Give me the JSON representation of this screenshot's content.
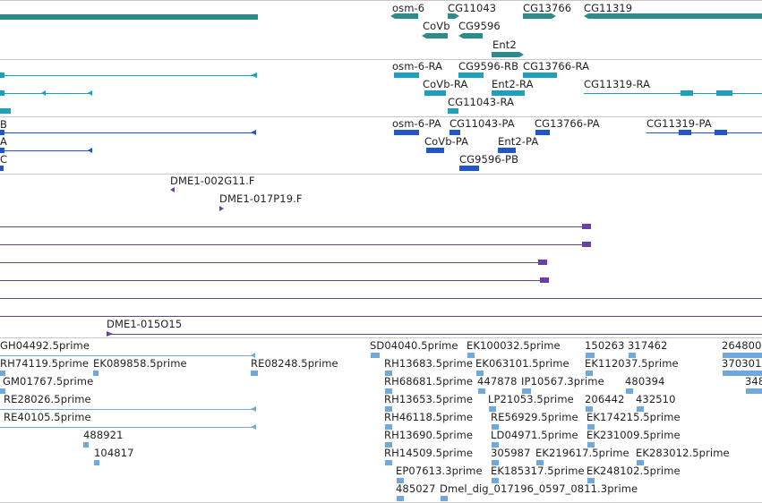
{
  "colors": {
    "gene": "#2e8b8b",
    "mrna": "#1e9fc0",
    "cds": "#2255cc",
    "clone": "#6a3fa6",
    "est": "#6fa8dc",
    "divider": "#c8c8c8"
  },
  "tracks": {
    "genes": {
      "labels": [
        "osm-6",
        "CG11043",
        "CG13766",
        "CG11319",
        "CoVb",
        "CG9596",
        "Ent2"
      ]
    },
    "transcripts": {
      "labels": [
        "osm-6-RA",
        "CG9596-RB",
        "CG13766-RA",
        "CoVb-RA",
        "Ent2-RA",
        "CG11319-RA",
        "CG11043-RA"
      ]
    },
    "proteins": {
      "labels": [
        "B",
        "A",
        "C",
        "osm-6-PA",
        "CG11043-PA",
        "CG13766-PA",
        "CG11319-PA",
        "CoVb-PA",
        "Ent2-PA",
        "CG9596-PB"
      ]
    },
    "clones": {
      "labels": [
        "DME1-002G11.F",
        "DME1-017P19.F",
        "DME1-015O15"
      ]
    },
    "ests": {
      "labels": [
        "GH04492.5prime",
        "SD04040.5prime",
        "EK100032.5prime",
        "150263",
        "317462",
        "264800",
        "RH74119.5prime",
        "EK089858.5prime",
        "RE08248.5prime",
        "RH13683.5prime",
        "EK063101.5prime",
        "EK112037.5prime",
        "370301",
        "GM01767.5prime",
        "RH68681.5prime",
        "447878",
        "IP10567.3prime",
        "480394",
        "348",
        "RE28026.5prime",
        "RH13653.5prime",
        "LP21053.5prime",
        "206442",
        "432510",
        "RE40105.5prime",
        "RH46118.5prime",
        "RE56929.5prime",
        "EK174215.5prime",
        "488921",
        "RH13690.5prime",
        "LD04971.5prime",
        "EK231009.5prime",
        "104817",
        "RH14509.5prime",
        "305987",
        "EK219617.5prime",
        "EK283012.5prime",
        "EP07613.3prime",
        "EK185317.5prime",
        "EK248102.5prime",
        "485027",
        "Dmel_dig_017196_0597_0811.3prime"
      ]
    }
  }
}
